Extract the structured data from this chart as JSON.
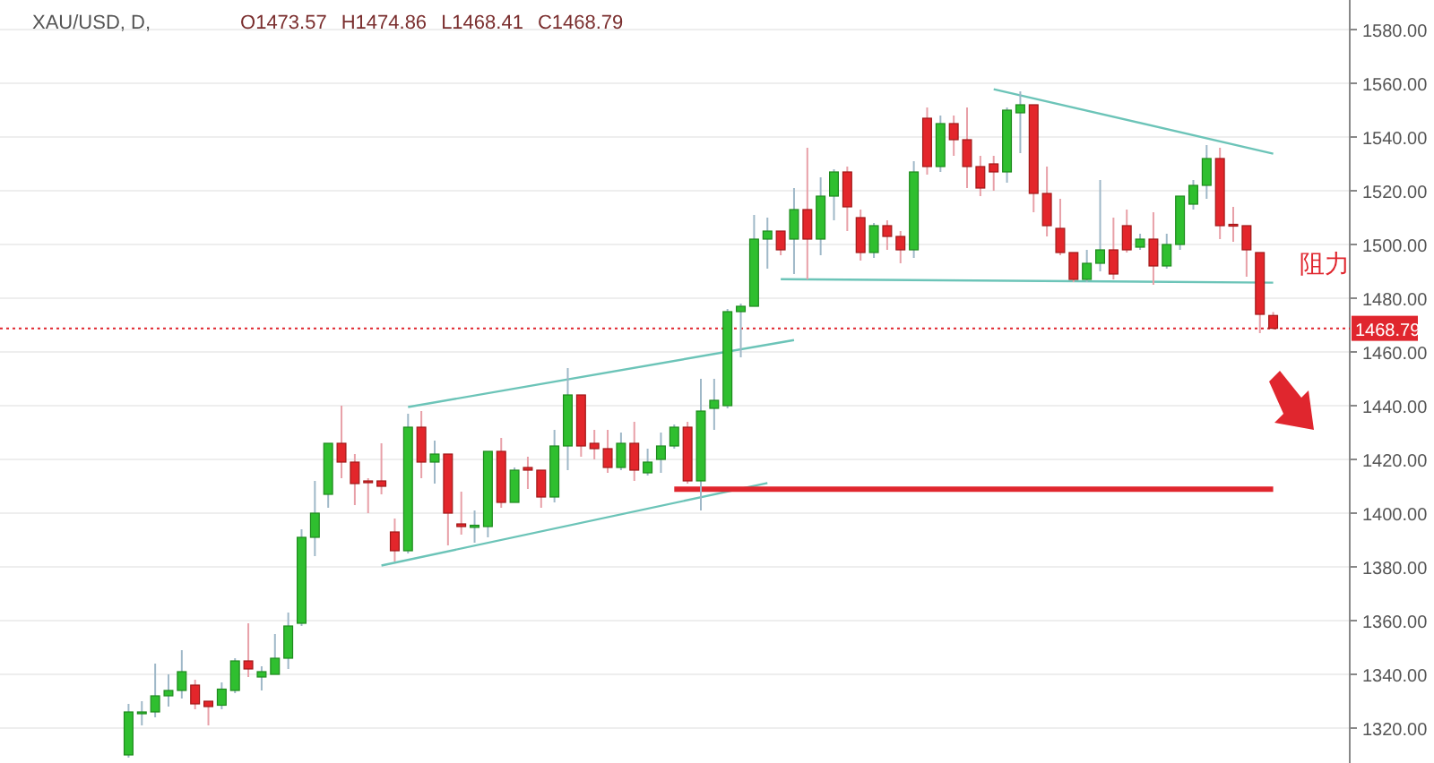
{
  "chart_data": {
    "type": "candlestick",
    "title": "XAU/USD, D,",
    "annotations": [
      "O1473.57",
      "H1474.86",
      "L1468.41",
      "C1468.79",
      "阻力"
    ],
    "categories": [
      null,
      null,
      null,
      null,
      null,
      null,
      null,
      null,
      null,
      null,
      null,
      null,
      null,
      null,
      null,
      null,
      null,
      null,
      null,
      null,
      null,
      null,
      null,
      null,
      null,
      null,
      null,
      null,
      null,
      null,
      null,
      null,
      null,
      null,
      null,
      null,
      null,
      null,
      null,
      null,
      null,
      null,
      null,
      null,
      null,
      null,
      null,
      null,
      null,
      null,
      null,
      null,
      null,
      null,
      null,
      null,
      null,
      null,
      null,
      null,
      null,
      null,
      null,
      null,
      null,
      null,
      null,
      null,
      null,
      null,
      null,
      null,
      null,
      null,
      null,
      null,
      null,
      null,
      null,
      null,
      null,
      null,
      null,
      null,
      null,
      null,
      null
    ],
    "ohlc": [
      [
        1310,
        1329,
        1309,
        1326
      ],
      [
        1325.5,
        1330,
        1321,
        1326
      ],
      [
        1326,
        1344,
        1324,
        1332
      ],
      [
        1332,
        1340,
        1328,
        1334
      ],
      [
        1334,
        1349,
        1331,
        1341
      ],
      [
        1336,
        1338,
        1327,
        1329
      ],
      [
        1330,
        1330,
        1321,
        1328
      ],
      [
        1328.5,
        1337,
        1327,
        1334.5
      ],
      [
        1334,
        1346,
        1333,
        1345
      ],
      [
        1345,
        1359,
        1339,
        1342
      ],
      [
        1339,
        1343,
        1334,
        1341
      ],
      [
        1340,
        1355,
        1340,
        1346
      ],
      [
        1346,
        1363,
        1342,
        1358
      ],
      [
        1359,
        1394,
        1358,
        1391
      ],
      [
        1391,
        1412,
        1384,
        1400
      ],
      [
        1407,
        1426,
        1402,
        1426
      ],
      [
        1426,
        1440,
        1413,
        1419
      ],
      [
        1419,
        1422,
        1403,
        1411
      ],
      [
        1412,
        1413,
        1400,
        1411.5
      ],
      [
        1412,
        1426,
        1407,
        1410
      ],
      [
        1393,
        1398,
        1382,
        1386
      ],
      [
        1386,
        1437,
        1385,
        1432
      ],
      [
        1432,
        1438,
        1413,
        1419
      ],
      [
        1419,
        1427,
        1411,
        1422
      ],
      [
        1422,
        1422,
        1388,
        1400
      ],
      [
        1396,
        1408,
        1392,
        1395
      ],
      [
        1394.7,
        1401,
        1389,
        1395.5
      ],
      [
        1395,
        1423,
        1391,
        1423
      ],
      [
        1423,
        1428,
        1402,
        1404
      ],
      [
        1404,
        1417,
        1404,
        1416
      ],
      [
        1417,
        1421,
        1409,
        1416
      ],
      [
        1416,
        1416,
        1402,
        1406
      ],
      [
        1406,
        1431,
        1404,
        1425
      ],
      [
        1425,
        1454,
        1416,
        1444
      ],
      [
        1444,
        1444,
        1421,
        1425
      ],
      [
        1426,
        1431,
        1420,
        1424
      ],
      [
        1424,
        1431,
        1415,
        1417
      ],
      [
        1417,
        1430,
        1416,
        1426
      ],
      [
        1426,
        1434,
        1412,
        1416
      ],
      [
        1415,
        1424,
        1414,
        1419
      ],
      [
        1420,
        1430,
        1415,
        1425
      ],
      [
        1425,
        1433,
        1424,
        1432
      ],
      [
        1432,
        1434,
        1411,
        1412
      ],
      [
        1412,
        1450,
        1401,
        1438
      ],
      [
        1439,
        1450,
        1431,
        1442
      ],
      [
        1440,
        1476,
        1439,
        1475
      ],
      [
        1475,
        1478,
        1458,
        1477
      ],
      [
        1477,
        1511,
        1477,
        1502
      ],
      [
        1502,
        1510,
        1491,
        1505
      ],
      [
        1505,
        1505,
        1496,
        1498
      ],
      [
        1502,
        1521,
        1489,
        1513
      ],
      [
        1513,
        1536,
        1487,
        1502
      ],
      [
        1502,
        1525,
        1496,
        1518
      ],
      [
        1518,
        1528,
        1509,
        1527
      ],
      [
        1527,
        1529,
        1505,
        1514
      ],
      [
        1510,
        1513,
        1494,
        1497
      ],
      [
        1497,
        1508,
        1495,
        1507
      ],
      [
        1507,
        1509,
        1498,
        1503
      ],
      [
        1503,
        1505,
        1493,
        1498
      ],
      [
        1498,
        1531,
        1495,
        1527
      ],
      [
        1547,
        1551,
        1526,
        1529
      ],
      [
        1529,
        1548,
        1527,
        1545
      ],
      [
        1545,
        1548,
        1533,
        1539
      ],
      [
        1539,
        1551,
        1521,
        1529
      ],
      [
        1529,
        1533,
        1518,
        1521
      ],
      [
        1530,
        1533,
        1520,
        1527
      ],
      [
        1527,
        1551,
        1523,
        1550
      ],
      [
        1549,
        1557,
        1534,
        1552
      ],
      [
        1552,
        1552,
        1512,
        1519
      ],
      [
        1519,
        1529,
        1503,
        1507
      ],
      [
        1506,
        1517,
        1496,
        1497
      ],
      [
        1497,
        1497,
        1486,
        1487
      ],
      [
        1487,
        1498,
        1486,
        1493
      ],
      [
        1493,
        1524,
        1490,
        1498
      ],
      [
        1498,
        1510,
        1487,
        1489
      ],
      [
        1507,
        1513,
        1497,
        1498
      ],
      [
        1499,
        1504,
        1498,
        1502
      ],
      [
        1502,
        1512,
        1485,
        1492
      ],
      [
        1492,
        1504,
        1491,
        1500
      ],
      [
        1500,
        1518,
        1498,
        1518
      ],
      [
        1515,
        1524,
        1513,
        1522
      ],
      [
        1522,
        1537,
        1517,
        1532
      ],
      [
        1532,
        1536,
        1502,
        1507
      ],
      [
        1507.5,
        1514,
        1501,
        1507
      ],
      [
        1507,
        1507,
        1488,
        1498
      ],
      [
        1497,
        1497,
        1467,
        1474
      ],
      [
        1473.57,
        1474.86,
        1468.41,
        1468.79
      ]
    ],
    "series": [
      {
        "type": "line",
        "color": "#6cc4b8",
        "values": [
          null,
          null,
          null,
          null,
          null,
          null,
          null,
          null,
          null,
          null,
          null,
          null,
          null,
          null,
          null,
          null,
          null,
          null,
          null,
          null,
          null,
          1439.5,
          null,
          null,
          null,
          null,
          null,
          null,
          null,
          null,
          null,
          null,
          null,
          null,
          null,
          null,
          null,
          null,
          null,
          null,
          null,
          null,
          null,
          null,
          null,
          null,
          null,
          null,
          null,
          null,
          1464.4,
          null,
          null,
          null,
          null,
          null,
          null,
          null,
          null,
          null,
          null,
          null,
          null,
          null,
          null,
          null,
          null,
          null,
          null,
          null,
          null,
          null,
          null,
          null,
          null,
          null,
          null,
          null,
          null,
          null,
          null,
          null,
          null,
          null,
          null,
          null,
          null
        ]
      },
      {
        "type": "line",
        "color": "#6cc4b8",
        "values": [
          null,
          null,
          null,
          null,
          null,
          null,
          null,
          null,
          null,
          null,
          null,
          null,
          null,
          null,
          null,
          null,
          null,
          null,
          null,
          1380.5,
          null,
          null,
          null,
          null,
          null,
          null,
          null,
          null,
          null,
          null,
          null,
          null,
          null,
          null,
          null,
          null,
          null,
          null,
          null,
          null,
          null,
          null,
          null,
          null,
          null,
          null,
          null,
          null,
          1411.2,
          null,
          null,
          null,
          null,
          null,
          null,
          null,
          null,
          null,
          null,
          null,
          null,
          null,
          null,
          null,
          null,
          null,
          null,
          null,
          null,
          null,
          null,
          null,
          null,
          null,
          null,
          null,
          null,
          null,
          null,
          null,
          null,
          null,
          null,
          null,
          null,
          null,
          null
        ]
      },
      {
        "type": "line",
        "color": "#6cc4b8",
        "values": [
          null,
          null,
          null,
          null,
          null,
          null,
          null,
          null,
          null,
          null,
          null,
          null,
          null,
          null,
          null,
          null,
          null,
          null,
          null,
          null,
          null,
          null,
          null,
          null,
          null,
          null,
          null,
          null,
          null,
          null,
          null,
          null,
          null,
          null,
          null,
          null,
          null,
          null,
          null,
          null,
          null,
          null,
          null,
          null,
          null,
          null,
          null,
          null,
          null,
          null,
          null,
          null,
          null,
          null,
          null,
          null,
          null,
          null,
          null,
          null,
          null,
          null,
          null,
          null,
          null,
          1557.8,
          null,
          null,
          null,
          null,
          null,
          null,
          null,
          null,
          null,
          null,
          null,
          null,
          null,
          null,
          null,
          null,
          null,
          null,
          null,
          null,
          1533.8
        ]
      },
      {
        "type": "line",
        "color": "#6cc4b8",
        "values": [
          null,
          null,
          null,
          null,
          null,
          null,
          null,
          null,
          null,
          null,
          null,
          null,
          null,
          null,
          null,
          null,
          null,
          null,
          null,
          null,
          null,
          null,
          null,
          null,
          null,
          null,
          null,
          null,
          null,
          null,
          null,
          null,
          null,
          null,
          null,
          null,
          null,
          null,
          null,
          null,
          null,
          null,
          null,
          null,
          null,
          null,
          null,
          null,
          null,
          1487.1,
          null,
          null,
          null,
          null,
          null,
          null,
          null,
          null,
          null,
          null,
          null,
          null,
          null,
          null,
          null,
          null,
          null,
          null,
          null,
          null,
          null,
          null,
          null,
          null,
          null,
          null,
          null,
          null,
          null,
          null,
          null,
          null,
          null,
          null,
          null,
          null,
          1485.8
        ]
      },
      {
        "type": "line",
        "color": "#e0262e",
        "values": [
          null,
          null,
          null,
          null,
          null,
          null,
          null,
          null,
          null,
          null,
          null,
          null,
          null,
          null,
          null,
          null,
          null,
          null,
          null,
          null,
          null,
          null,
          null,
          null,
          null,
          null,
          null,
          null,
          null,
          null,
          null,
          null,
          null,
          null,
          null,
          null,
          null,
          null,
          null,
          null,
          null,
          1408.9,
          null,
          null,
          null,
          null,
          null,
          null,
          null,
          null,
          null,
          null,
          null,
          null,
          null,
          null,
          null,
          null,
          null,
          null,
          null,
          null,
          null,
          null,
          null,
          null,
          null,
          null,
          null,
          null,
          null,
          null,
          null,
          null,
          null,
          null,
          null,
          null,
          null,
          null,
          null,
          null,
          null,
          null,
          null,
          null,
          1408.9
        ]
      }
    ],
    "ref_lines": [
      {
        "axis": "y",
        "value": 1468.79,
        "label": "1468.79",
        "color": "#e0262e",
        "line_style": "dotted"
      }
    ],
    "ylim": [
      1307,
      1591
    ],
    "yticks": [
      {
        "value": 1320,
        "label": "1320.00"
      },
      {
        "value": 1340,
        "label": "1340.00"
      },
      {
        "value": 1360,
        "label": "1360.00"
      },
      {
        "value": 1380,
        "label": "1380.00"
      },
      {
        "value": 1400,
        "label": "1400.00"
      },
      {
        "value": 1420,
        "label": "1420.00"
      },
      {
        "value": 1440,
        "label": "1440.00"
      },
      {
        "value": 1460,
        "label": "1460.00"
      },
      {
        "value": 1480,
        "label": "1480.00"
      },
      {
        "value": 1500,
        "label": "1500.00"
      },
      {
        "value": 1520,
        "label": "1520.00"
      },
      {
        "value": 1540,
        "label": "1540.00"
      },
      {
        "value": 1560,
        "label": "1560.00"
      },
      {
        "value": 1580,
        "label": "1580.00"
      }
    ],
    "grid": "y",
    "tick_labels": "y"
  }
}
